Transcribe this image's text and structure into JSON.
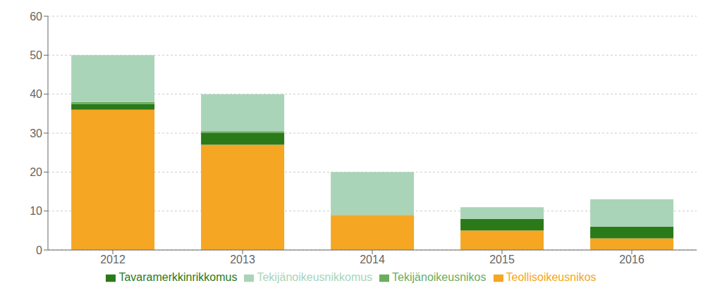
{
  "chart_data": {
    "type": "bar",
    "stacked": true,
    "grid": true,
    "legend": "bottom",
    "categories": [
      "2012",
      "2013",
      "2014",
      "2015",
      "2016"
    ],
    "series": [
      {
        "name": "Teollisoikeusnikos",
        "color": "#F5A623",
        "values": [
          36,
          27,
          9,
          5,
          3
        ]
      },
      {
        "name": "Tavaramerkkinrikkomus",
        "color": "#2A7A1A",
        "values": [
          1.5,
          3,
          0,
          3,
          3
        ]
      },
      {
        "name": "Tekijänoikeusnikos",
        "color": "#6AAD5E",
        "values": [
          0.5,
          0.5,
          0,
          0,
          0
        ]
      },
      {
        "name": "Tekijänoikeusnikkomus",
        "color": "#AAD4B8",
        "values": [
          12,
          9.5,
          11,
          3,
          7
        ]
      }
    ],
    "ylim": [
      0,
      60
    ],
    "yticks": [
      0,
      10,
      20,
      30,
      40,
      50,
      60
    ]
  }
}
